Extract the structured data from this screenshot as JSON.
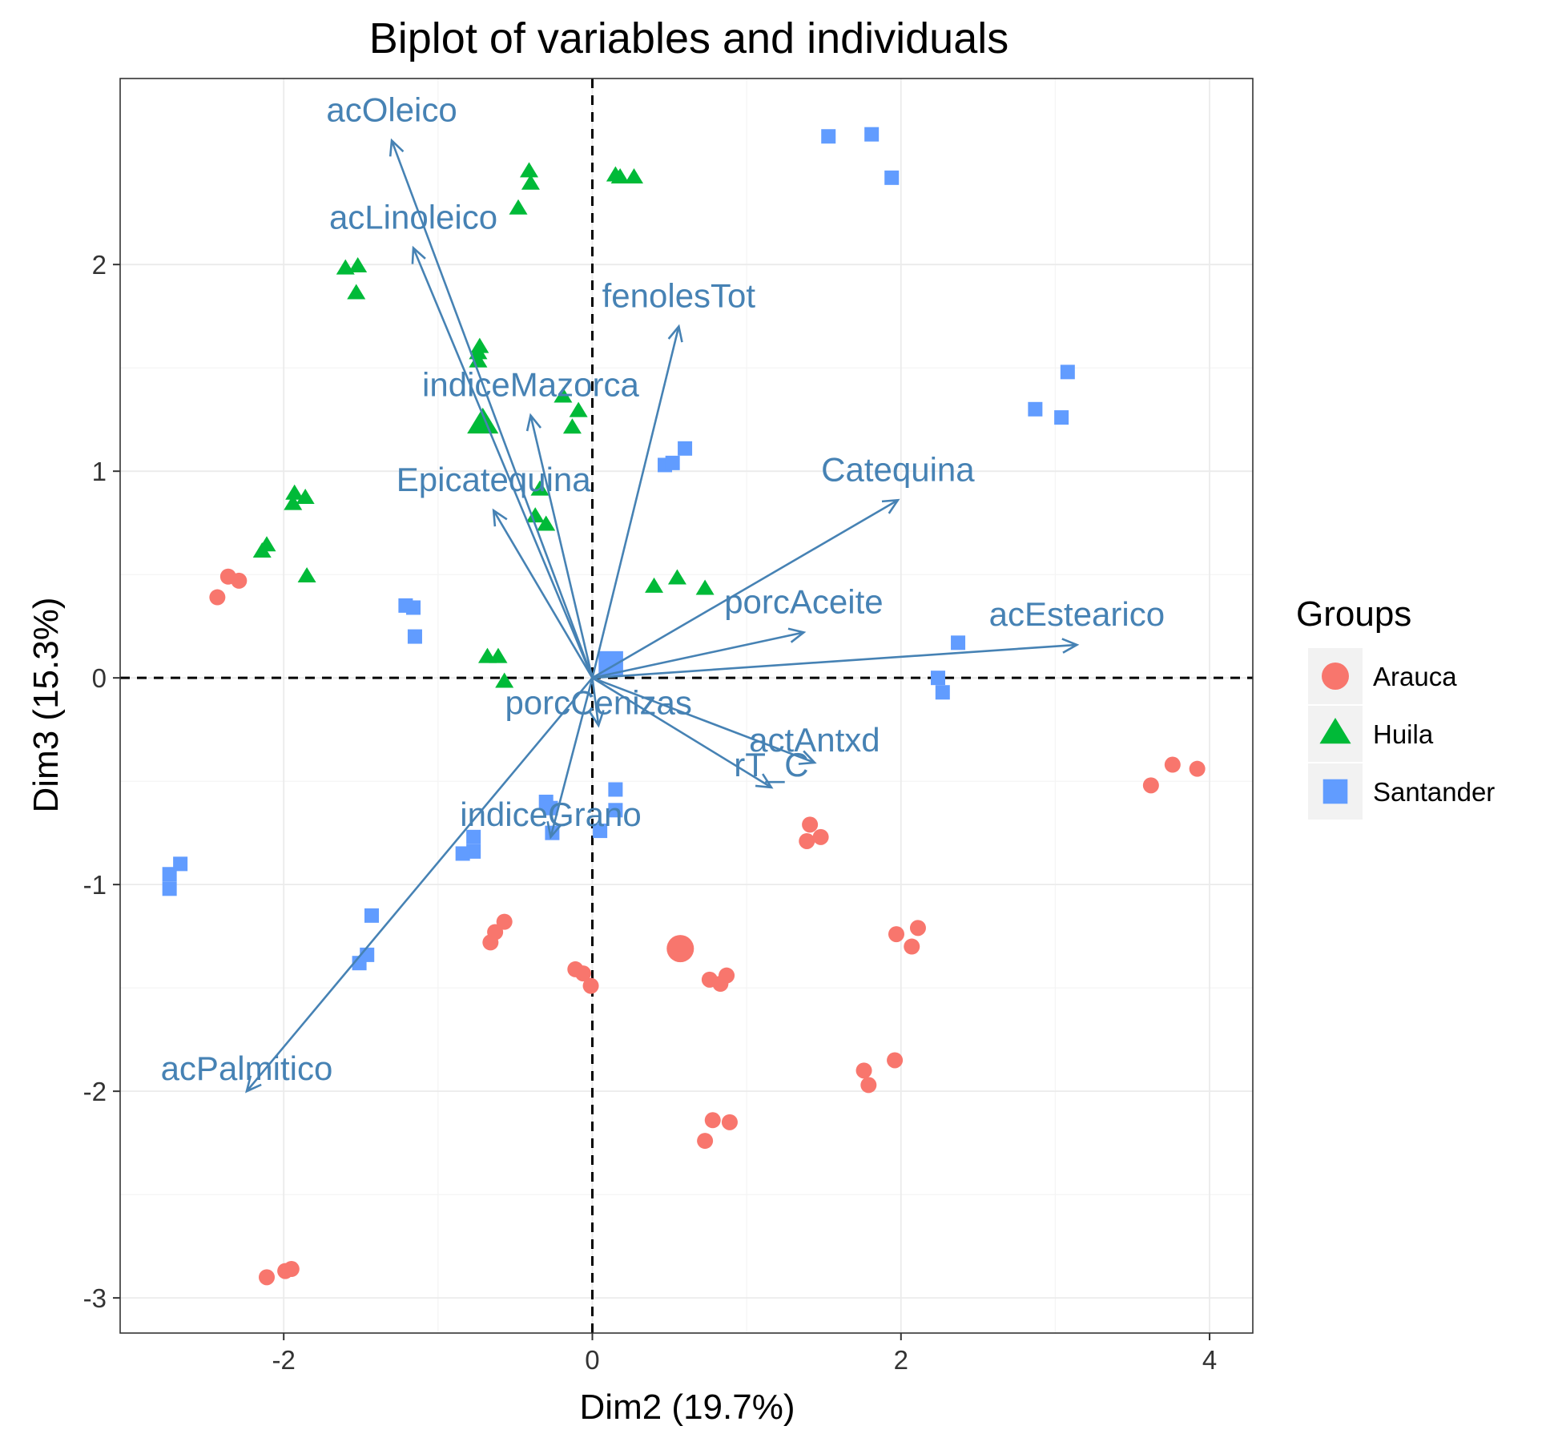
{
  "chart_data": {
    "type": "scatter",
    "subtype": "pca-biplot",
    "title": "Biplot of variables and individuals",
    "xlabel": "Dim2 (19.7%)",
    "ylabel": "Dim3 (15.3%)",
    "xlim": [
      -3.06,
      4.28
    ],
    "ylim": [
      -3.17,
      2.9
    ],
    "xticks": [
      -2,
      0,
      2,
      4
    ],
    "yticks": [
      -3,
      -2,
      -1,
      0,
      1,
      2
    ],
    "grid": true,
    "reference_lines": {
      "x": 0,
      "y": 0,
      "style": "dashed"
    },
    "legend": {
      "title": "Groups",
      "position": "right",
      "entries": [
        {
          "name": "Arauca",
          "color": "#F8766D",
          "shape": "circle"
        },
        {
          "name": "Huila",
          "color": "#00BA38",
          "shape": "triangle"
        },
        {
          "name": "Santander",
          "color": "#619CFF",
          "shape": "square"
        }
      ]
    },
    "arrow_color": "#4682B4",
    "series": [
      {
        "name": "Arauca",
        "shape": "circle",
        "color": "#F8766D",
        "centroid": [
          0.57,
          -1.31
        ],
        "points": [
          [
            -2.43,
            0.39
          ],
          [
            -2.36,
            0.49
          ],
          [
            -2.29,
            0.47
          ],
          [
            -0.57,
            -1.18
          ],
          [
            -0.63,
            -1.23
          ],
          [
            -0.66,
            -1.28
          ],
          [
            -0.11,
            -1.41
          ],
          [
            -0.06,
            -1.43
          ],
          [
            -0.01,
            -1.49
          ],
          [
            0.76,
            -1.46
          ],
          [
            0.83,
            -1.48
          ],
          [
            0.87,
            -1.44
          ],
          [
            1.41,
            -0.71
          ],
          [
            1.39,
            -0.79
          ],
          [
            1.48,
            -0.77
          ],
          [
            1.97,
            -1.24
          ],
          [
            2.07,
            -1.3
          ],
          [
            2.11,
            -1.21
          ],
          [
            1.76,
            -1.9
          ],
          [
            1.79,
            -1.97
          ],
          [
            1.96,
            -1.85
          ],
          [
            0.73,
            -2.24
          ],
          [
            0.78,
            -2.14
          ],
          [
            0.89,
            -2.15
          ],
          [
            -2.11,
            -2.9
          ],
          [
            -1.99,
            -2.87
          ],
          [
            -1.95,
            -2.86
          ],
          [
            3.62,
            -0.52
          ],
          [
            3.76,
            -0.42
          ],
          [
            3.92,
            -0.44
          ]
        ]
      },
      {
        "name": "Huila",
        "shape": "triangle",
        "color": "#00BA38",
        "centroid": [
          -0.71,
          1.23
        ],
        "points": [
          [
            -0.41,
            2.45
          ],
          [
            -0.4,
            2.39
          ],
          [
            -0.48,
            2.27
          ],
          [
            0.15,
            2.43
          ],
          [
            0.27,
            2.42
          ],
          [
            0.18,
            2.42
          ],
          [
            -1.6,
            1.98
          ],
          [
            -1.52,
            1.99
          ],
          [
            -1.53,
            1.86
          ],
          [
            -0.73,
            1.6
          ],
          [
            -0.74,
            1.57
          ],
          [
            -0.74,
            1.53
          ],
          [
            -0.19,
            1.36
          ],
          [
            -0.09,
            1.29
          ],
          [
            -0.13,
            1.21
          ],
          [
            -1.93,
            0.89
          ],
          [
            -1.86,
            0.87
          ],
          [
            -1.94,
            0.84
          ],
          [
            -2.14,
            0.61
          ],
          [
            -2.11,
            0.64
          ],
          [
            -1.85,
            0.49
          ],
          [
            -0.34,
            0.91
          ],
          [
            -0.37,
            0.78
          ],
          [
            -0.3,
            0.74
          ],
          [
            0.4,
            0.44
          ],
          [
            0.55,
            0.48
          ],
          [
            0.73,
            0.43
          ],
          [
            -0.68,
            0.1
          ],
          [
            -0.61,
            0.1
          ],
          [
            -0.57,
            -0.02
          ]
        ]
      },
      {
        "name": "Santander",
        "shape": "square",
        "color": "#619CFF",
        "centroid": [
          0.12,
          0.07
        ],
        "points": [
          [
            1.53,
            2.62
          ],
          [
            1.81,
            2.63
          ],
          [
            1.94,
            2.42
          ],
          [
            3.08,
            1.48
          ],
          [
            2.87,
            1.3
          ],
          [
            3.04,
            1.26
          ],
          [
            0.47,
            1.03
          ],
          [
            0.52,
            1.04
          ],
          [
            0.6,
            1.11
          ],
          [
            -1.21,
            0.35
          ],
          [
            -1.16,
            0.34
          ],
          [
            -1.15,
            0.2
          ],
          [
            2.37,
            0.17
          ],
          [
            2.24,
            0.0
          ],
          [
            2.27,
            -0.07
          ],
          [
            0.15,
            -0.54
          ],
          [
            0.15,
            -0.64
          ],
          [
            0.05,
            -0.74
          ],
          [
            -0.3,
            -0.6
          ],
          [
            -0.27,
            -0.63
          ],
          [
            -0.26,
            -0.75
          ],
          [
            -0.77,
            -0.77
          ],
          [
            -0.77,
            -0.84
          ],
          [
            -0.84,
            -0.85
          ],
          [
            -2.74,
            -0.95
          ],
          [
            -2.67,
            -0.9
          ],
          [
            -2.74,
            -1.02
          ],
          [
            -1.43,
            -1.15
          ],
          [
            -1.46,
            -1.34
          ],
          [
            -1.51,
            -1.38
          ]
        ]
      }
    ],
    "variables": [
      {
        "name": "acOleico",
        "x": -1.3,
        "y": 2.6
      },
      {
        "name": "acLinoleico",
        "x": -1.16,
        "y": 2.08
      },
      {
        "name": "fenolesTot",
        "x": 0.56,
        "y": 1.7
      },
      {
        "name": "indiceMazorca",
        "x": -0.4,
        "y": 1.27
      },
      {
        "name": "Epicatequina",
        "x": -0.64,
        "y": 0.81
      },
      {
        "name": "Catequina",
        "x": 1.98,
        "y": 0.86
      },
      {
        "name": "porcAceite",
        "x": 1.37,
        "y": 0.22
      },
      {
        "name": "acEstearico",
        "x": 3.14,
        "y": 0.16
      },
      {
        "name": "porcCenizas",
        "x": 0.04,
        "y": -0.23
      },
      {
        "name": "actAntxd",
        "x": 1.44,
        "y": -0.41
      },
      {
        "name": "rT_C",
        "x": 1.16,
        "y": -0.53
      },
      {
        "name": "indiceGrano",
        "x": -0.27,
        "y": -0.77
      },
      {
        "name": "acPalmitico",
        "x": -2.24,
        "y": -2.0
      }
    ]
  }
}
